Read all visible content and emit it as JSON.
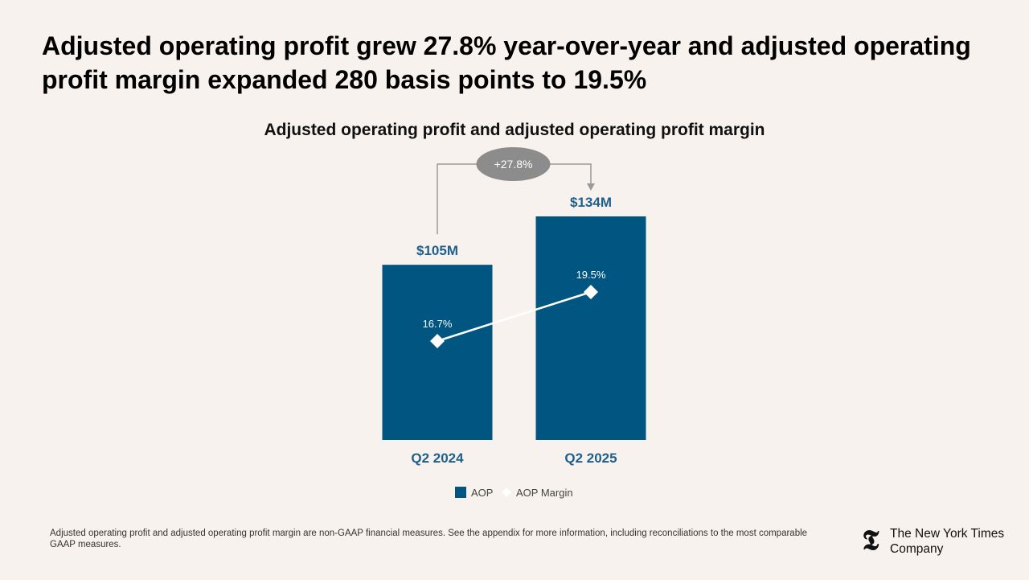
{
  "headline": "Adjusted operating profit grew 27.8% year-over-year and adjusted operating profit margin expanded 280 basis points to 19.5%",
  "chart_data": {
    "type": "bar",
    "title": "Adjusted operating profit and adjusted operating profit margin",
    "categories": [
      "Q2 2024",
      "Q2 2025"
    ],
    "series": [
      {
        "name": "AOP",
        "kind": "bar",
        "unit": "$M",
        "values": [
          105,
          134
        ],
        "labels": [
          "$105M",
          "$134M"
        ]
      },
      {
        "name": "AOP Margin",
        "kind": "line",
        "unit": "%",
        "values": [
          16.7,
          19.5
        ],
        "labels": [
          "16.7%",
          "19.5%"
        ]
      }
    ],
    "annotation": "+27.8%",
    "legend": [
      "AOP",
      "AOP Margin"
    ],
    "legend_position": "bottom",
    "colors": {
      "bar": "#005581",
      "line": "#ffffff",
      "label": "#1f5f8b",
      "bubble": "#8c8c8c",
      "connector": "#9a9a9a"
    }
  },
  "footnote": "Adjusted operating profit and adjusted operating profit margin are non-GAAP financial measures. See the appendix for more information, including reconciliations to the most comparable GAAP measures.",
  "logo": {
    "mark": "𝕿",
    "line1": "The New York Times",
    "line2": "Company"
  }
}
